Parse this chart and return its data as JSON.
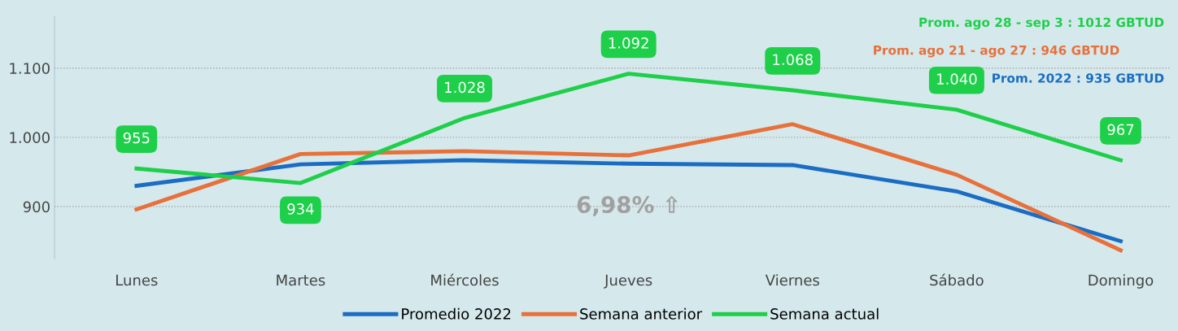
{
  "chart_data": {
    "type": "line",
    "categories": [
      "Lunes",
      "Martes",
      "Miércoles",
      "Jueves",
      "Viernes",
      "Sábado",
      "Domingo"
    ],
    "series": [
      {
        "name": "Promedio 2022",
        "color": "#1a6dc2",
        "values": [
          930,
          961,
          967,
          962,
          960,
          922,
          850
        ]
      },
      {
        "name": "Semana anterior",
        "color": "#e8703a",
        "values": [
          896,
          976,
          980,
          974,
          1019,
          946,
          837
        ]
      },
      {
        "name": "Semana actual",
        "color": "#1ecf4a",
        "values": [
          955,
          934,
          1028,
          1092,
          1068,
          1040,
          967
        ],
        "value_labels": [
          "955",
          "934",
          "1.028",
          "1.092",
          "1.068",
          "1.040",
          "967"
        ]
      }
    ],
    "ylim": [
      825,
      1175
    ],
    "yticks": [
      {
        "value": 900,
        "label": "900"
      },
      {
        "value": 1000,
        "label": "1.000"
      },
      {
        "value": 1100,
        "label": "1.100"
      }
    ],
    "grid": "y",
    "legend": "bottom",
    "marker": "none",
    "line_style": "solid",
    "annotations": [
      "Prom. ago 28 - sep 3 : 1012 GBTUD",
      "Prom. ago 21 - ago 27 : 946 GBTUD",
      "Prom. 2022 : 935 GBTUD",
      "6,98% ⇧"
    ]
  }
}
